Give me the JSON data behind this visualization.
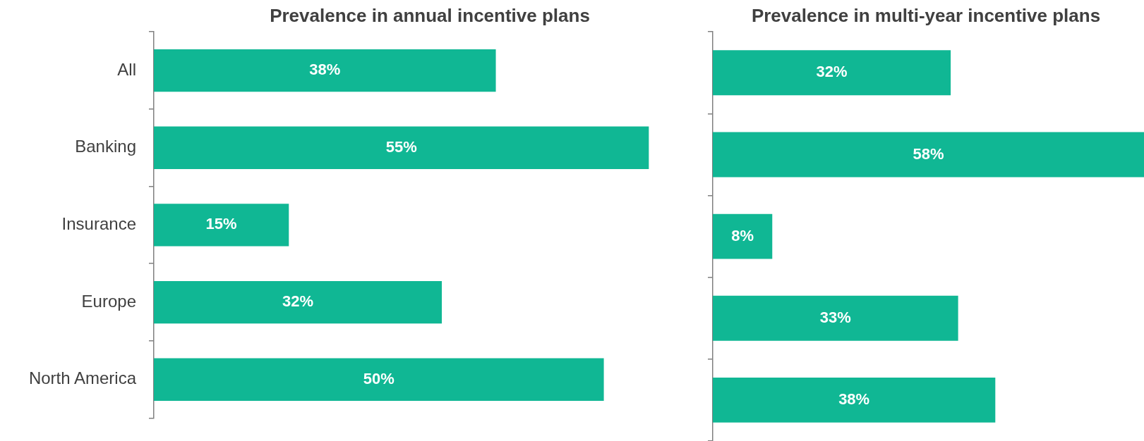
{
  "chart_data": [
    {
      "type": "bar",
      "orientation": "horizontal",
      "title": "Prevalence in annual incentive plans",
      "categories": [
        "All",
        "Banking",
        "Insurance",
        "Europe",
        "North America"
      ],
      "series": [
        {
          "color": "#10b794",
          "values": [
            38,
            55,
            15,
            32,
            50
          ],
          "value_labels": [
            "38%",
            "55%",
            "15%",
            "32%",
            "50%"
          ]
        }
      ],
      "grid": false,
      "legend": false,
      "tick_labels": "y"
    },
    {
      "type": "bar",
      "orientation": "horizontal",
      "title": "Prevalence in multi-year incentive plans",
      "categories": [
        null,
        null,
        null,
        null,
        null
      ],
      "series": [
        {
          "color": "#10b794",
          "values": [
            32,
            58,
            8,
            33,
            38
          ],
          "value_labels": [
            "32%",
            "58%",
            "8%",
            "33%",
            "38%"
          ]
        }
      ],
      "grid": false,
      "legend": false,
      "tick_labels": false
    }
  ]
}
